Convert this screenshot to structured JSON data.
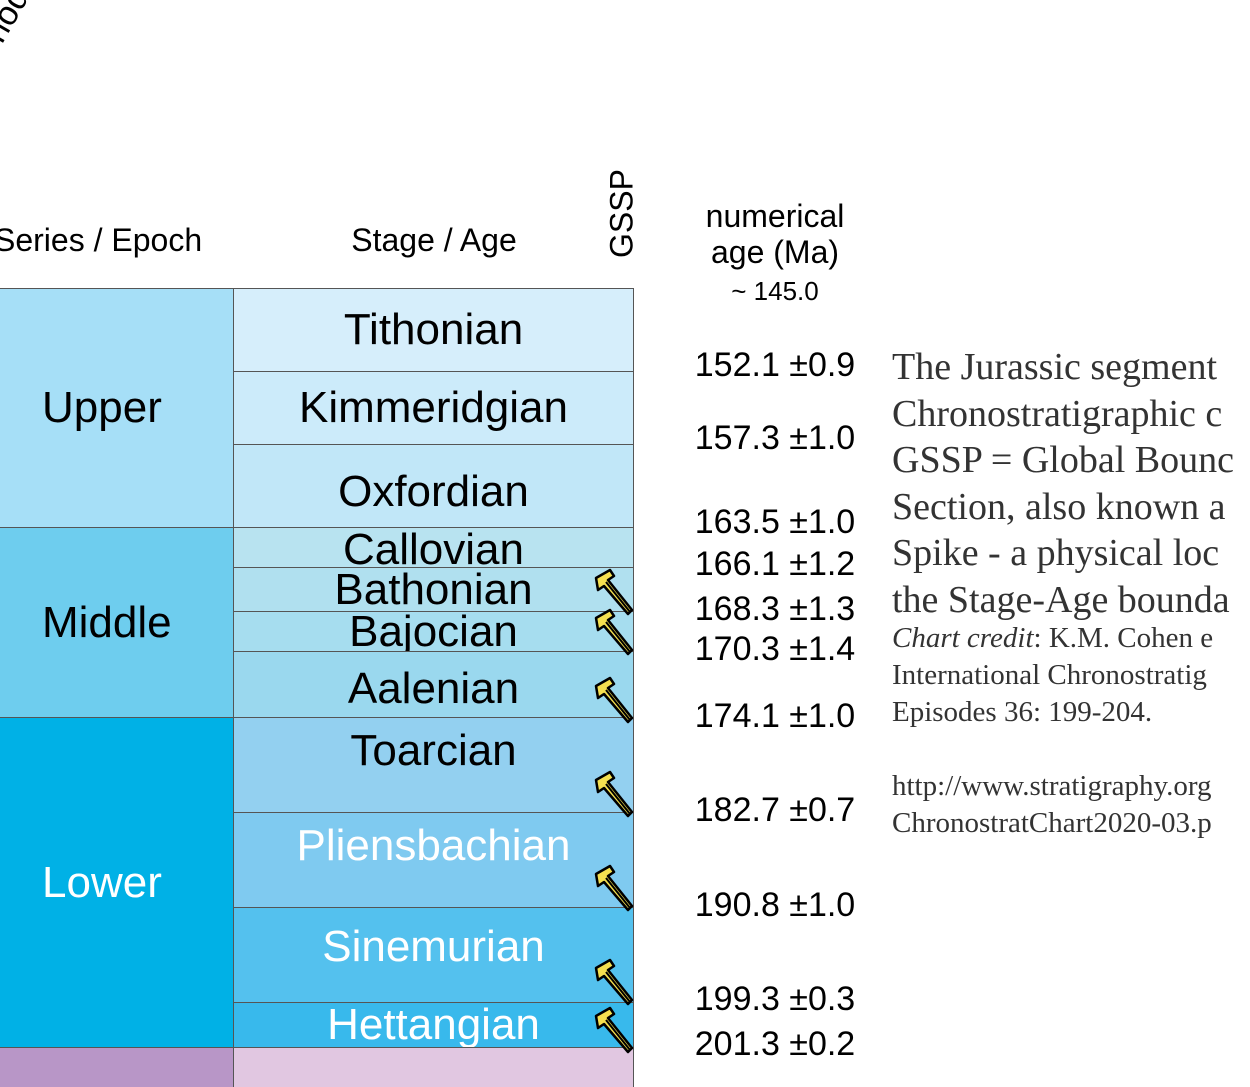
{
  "headers": {
    "period": "Period",
    "series": "Series / Epoch",
    "stage": "Stage / Age",
    "gssp": "GSSP",
    "numerical_age": "numerical age (Ma)",
    "numerical_age_line1": "numerical",
    "numerical_age_line2": "age (Ma)"
  },
  "top_age": "~ 145.0",
  "series": [
    {
      "label": "Upper",
      "color": "#a6dff7",
      "text_color": "#000000"
    },
    {
      "label": "Middle",
      "color": "#6ecdee",
      "text_color": "#000000"
    },
    {
      "label": "Lower",
      "color": "#00b1e6",
      "text_color": "#ffffff"
    }
  ],
  "stages": [
    {
      "label": "Tithonian",
      "color": "#d6eefb",
      "text_color": "#000000",
      "gssp": false
    },
    {
      "label": "Kimmeridgian",
      "color": "#ccebfa",
      "text_color": "#000000",
      "gssp": false
    },
    {
      "label": "Oxfordian",
      "color": "#c1e7f8",
      "text_color": "#000000",
      "gssp": false
    },
    {
      "label": "Callovian",
      "color": "#b8e3f0",
      "text_color": "#000000",
      "gssp": false
    },
    {
      "label": "Bathonian",
      "color": "#b0e0ef",
      "text_color": "#000000",
      "gssp": true
    },
    {
      "label": "Bajocian",
      "color": "#a6ddef",
      "text_color": "#000000",
      "gssp": true
    },
    {
      "label": "Aalenian",
      "color": "#9ad8ee",
      "text_color": "#000000",
      "gssp": true
    },
    {
      "label": "Toarcian",
      "color": "#93d0f0",
      "text_color": "#000000",
      "gssp": true
    },
    {
      "label": "Pliensbachian",
      "color": "#7fcaf0",
      "text_color": "#ffffff",
      "gssp": true
    },
    {
      "label": "Sinemurian",
      "color": "#54c1ee",
      "text_color": "#ffffff",
      "gssp": true
    },
    {
      "label": "Hettangian",
      "color": "#38b9ec",
      "text_color": "#ffffff",
      "gssp": true
    }
  ],
  "ages": [
    "152.1 ±0.9",
    "157.3 ±1.0",
    "163.5 ±1.0",
    "166.1 ±1.2",
    "168.3 ±1.3",
    "170.3 ±1.4",
    "174.1 ±1.0",
    "182.7 ±0.7",
    "190.8 ±1.0",
    "199.3 ±0.3",
    "201.3 ±0.2"
  ],
  "next_period_color": "#b896c7",
  "next_stage_color": "#e1c7e1",
  "spike_color": "#f5e050",
  "notes": {
    "line1": "The Jurassic segment",
    "line2": "Chronostratigraphic c",
    "line3": "GSSP = Global Bounc",
    "line4": "Section, also known a",
    "line5": "Spike - a physical loc",
    "line6": "the Stage-Age bounda",
    "credit_label": "Chart credit",
    "credit_rest": ": K.M. Cohen e",
    "credit_line2": "International Chronostratig",
    "credit_line3": "Episodes 36: 199-204.",
    "url_line1": "http://www.stratigraphy.org",
    "url_line2": "ChronostratChart2020-03.p"
  }
}
